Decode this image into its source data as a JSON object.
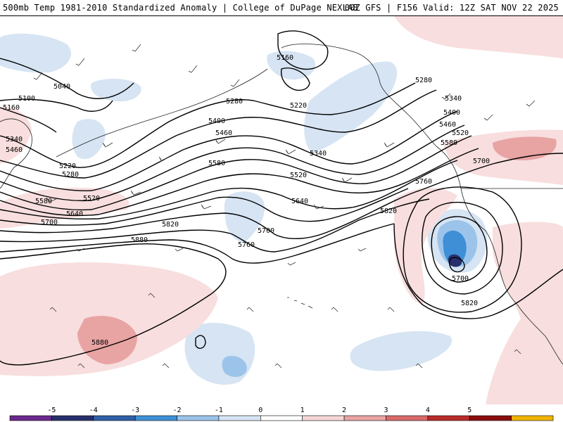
{
  "header": {
    "title_left": "500mb Temp 1981-2010 Standardized Anomaly | College of DuPage NEXLAB",
    "title_right": "00Z GFS | F156 Valid: 12Z SAT NOV 22 2025"
  },
  "contour_labels": [
    "5040",
    "5100",
    "5160",
    "5160",
    "5220",
    "5220",
    "5280",
    "5280",
    "5340",
    "5340",
    "5340",
    "5400",
    "5400",
    "5460",
    "5460",
    "5460",
    "5520",
    "5520",
    "5520",
    "5580",
    "5580",
    "5580",
    "5640",
    "5640",
    "5700",
    "5700",
    "5700",
    "5700",
    "5760",
    "5760",
    "5820",
    "5820",
    "5820",
    "5880",
    "5880",
    "5280"
  ],
  "legend": {
    "ticks": [
      "-5",
      "-4",
      "-3",
      "-2",
      "-1",
      "0",
      "1",
      "2",
      "3",
      "4",
      "5"
    ],
    "colors": [
      "#6a2a8c",
      "#27306b",
      "#2f5fa6",
      "#3e8fd6",
      "#9cc4ea",
      "#d6e4f3",
      "#ffffff",
      "#f5d6d6",
      "#e8a3a3",
      "#d86a6a",
      "#b82a2a",
      "#8a0e0e",
      "#f0b400"
    ]
  },
  "palette": {
    "cool_light": "#d6e4f3",
    "cool_mid": "#9cc4ea",
    "cool_strong": "#3e8fd6",
    "warm_light": "#f8dede",
    "warm_mid": "#e8a3a3",
    "warm_strong": "#d86a6a"
  }
}
